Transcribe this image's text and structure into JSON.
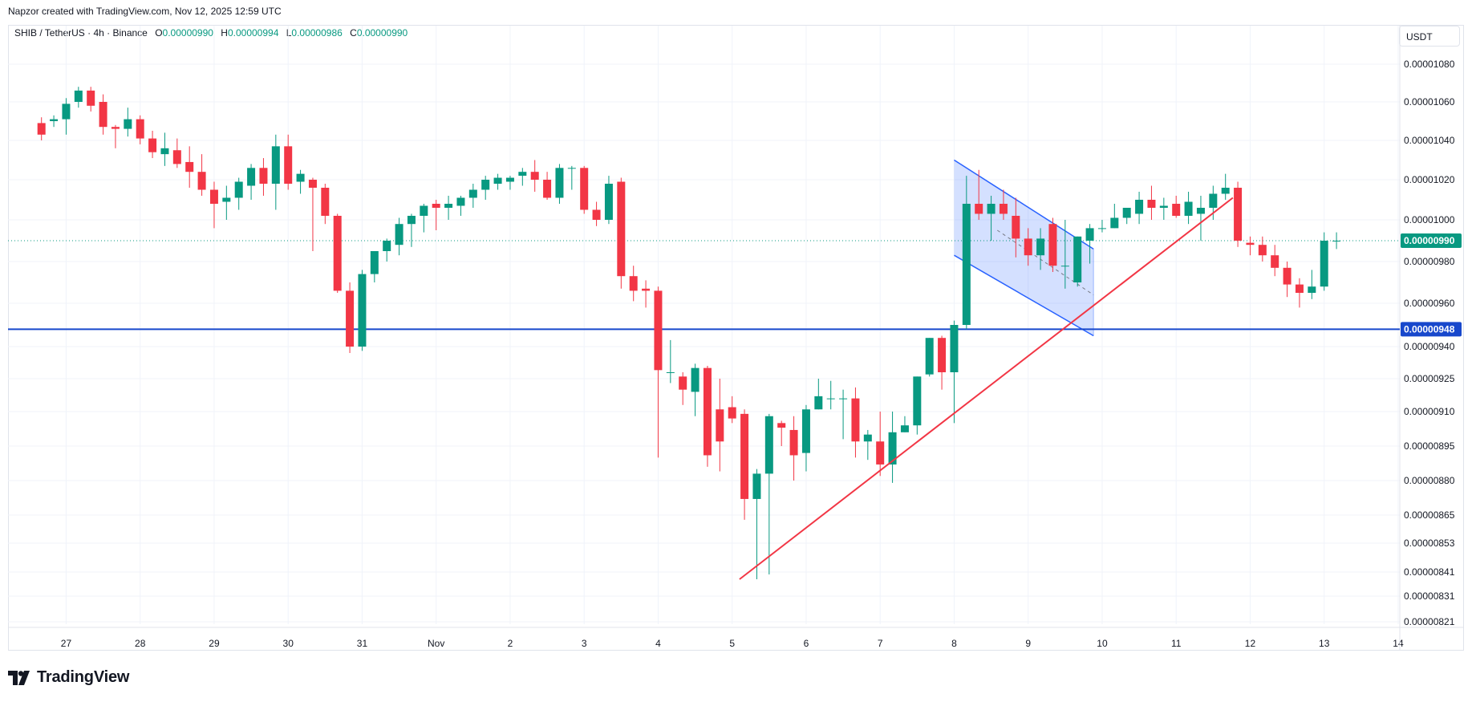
{
  "attribution": "Napzor created with TradingView.com, Nov 12, 2025 12:59 UTC",
  "legend": {
    "symbol": "SHIB / TetherUS · 4h · Binance",
    "open_label": "O",
    "open": "0.00000990",
    "high_label": "H",
    "high": "0.00000994",
    "low_label": "L",
    "low": "0.00000986",
    "close_label": "C",
    "close": "0.00000990"
  },
  "currency_button": "USDT",
  "logo_text": "TradingView",
  "colors": {
    "up": "#089981",
    "down": "#f23645",
    "level_line": "#1848cc",
    "trendline": "#f23645",
    "channel": "#2962ff",
    "grid": "#f0f3fa"
  },
  "chart_data": {
    "type": "candlestick",
    "title": "",
    "xlabel": "",
    "ylabel": "",
    "timeframe": "4h",
    "grid": true,
    "y_tick_labels": [
      "0.00001080",
      "0.00001060",
      "0.00001040",
      "0.00001020",
      "0.00001000",
      "0.00000980",
      "0.00000960",
      "0.00000940",
      "0.00000925",
      "0.00000910",
      "0.00000895",
      "0.00000880",
      "0.00000865",
      "0.00000853",
      "0.00000841",
      "0.00000831",
      "0.00000821"
    ],
    "x_tick_labels": [
      {
        "label": "27",
        "index": 2
      },
      {
        "label": "28",
        "index": 8
      },
      {
        "label": "29",
        "index": 14
      },
      {
        "label": "30",
        "index": 20
      },
      {
        "label": "31",
        "index": 26
      },
      {
        "label": "Nov",
        "index": 32
      },
      {
        "label": "2",
        "index": 38
      },
      {
        "label": "3",
        "index": 44
      },
      {
        "label": "4",
        "index": 50
      },
      {
        "label": "5",
        "index": 56
      },
      {
        "label": "6",
        "index": 62
      },
      {
        "label": "7",
        "index": 68
      },
      {
        "label": "8",
        "index": 74
      },
      {
        "label": "9",
        "index": 80
      },
      {
        "label": "10",
        "index": 86
      },
      {
        "label": "11",
        "index": 92
      },
      {
        "label": "12",
        "index": 98
      },
      {
        "label": "13",
        "index": 104
      },
      {
        "label": "14",
        "index": 110
      }
    ],
    "last_price": {
      "value": 9.9e-06,
      "label": "0.00000990"
    },
    "horizontal_level": {
      "value": 9.48e-06,
      "label": "0.00000948"
    },
    "candles": [
      [
        1.049e-05,
        1.052e-05,
        1.04e-05,
        1.043e-05
      ],
      [
        1.05e-05,
        1.053e-05,
        1.047e-05,
        1.051e-05
      ],
      [
        1.051e-05,
        1.062e-05,
        1.043e-05,
        1.059e-05
      ],
      [
        1.06e-05,
        1.068e-05,
        1.057e-05,
        1.066e-05
      ],
      [
        1.066e-05,
        1.068e-05,
        1.055e-05,
        1.058e-05
      ],
      [
        1.06e-05,
        1.064e-05,
        1.043e-05,
        1.047e-05
      ],
      [
        1.047e-05,
        1.048e-05,
        1.036e-05,
        1.046e-05
      ],
      [
        1.046e-05,
        1.057e-05,
        1.042e-05,
        1.051e-05
      ],
      [
        1.051e-05,
        1.053e-05,
        1.038e-05,
        1.041e-05
      ],
      [
        1.041e-05,
        1.045e-05,
        1.031e-05,
        1.034e-05
      ],
      [
        1.033e-05,
        1.044e-05,
        1.027e-05,
        1.036e-05
      ],
      [
        1.035e-05,
        1.041e-05,
        1.026e-05,
        1.028e-05
      ],
      [
        1.029e-05,
        1.037e-05,
        1.016e-05,
        1.024e-05
      ],
      [
        1.024e-05,
        1.033e-05,
        1.012e-05,
        1.015e-05
      ],
      [
        1.015e-05,
        1.019e-05,
        9.96e-06,
        1.008e-05
      ],
      [
        1.009e-05,
        1.017e-05,
        1e-05,
        1.011e-05
      ],
      [
        1.011e-05,
        1.021e-05,
        1.005e-05,
        1.019e-05
      ],
      [
        1.017e-05,
        1.028e-05,
        1.01e-05,
        1.026e-05
      ],
      [
        1.026e-05,
        1.031e-05,
        1.012e-05,
        1.018e-05
      ],
      [
        1.018e-05,
        1.043e-05,
        1.005e-05,
        1.037e-05
      ],
      [
        1.037e-05,
        1.043e-05,
        1.015e-05,
        1.018e-05
      ],
      [
        1.019e-05,
        1.025e-05,
        1.013e-05,
        1.023e-05
      ],
      [
        1.02e-05,
        1.021e-05,
        9.85e-06,
        1.016e-05
      ],
      [
        1.016e-05,
        1.018e-05,
        9.98e-06,
        1.002e-05
      ],
      [
        1.002e-05,
        1.003e-05,
        9.65e-06,
        9.66e-06
      ],
      [
        9.66e-06,
        9.7e-06,
        9.37e-06,
        9.4e-06
      ],
      [
        9.4e-06,
        9.76e-06,
        9.38e-06,
        9.74e-06
      ],
      [
        9.74e-06,
        9.84e-06,
        9.7e-06,
        9.85e-06
      ],
      [
        9.85e-06,
        9.91e-06,
        9.8e-06,
        9.9e-06
      ],
      [
        9.88e-06,
        1.001e-05,
        9.83e-06,
        9.98e-06
      ],
      [
        9.98e-06,
        1.003e-05,
        9.87e-06,
        1.002e-05
      ],
      [
        1.002e-05,
        1.008e-05,
        9.94e-06,
        1.007e-05
      ],
      [
        1.008e-05,
        1.01e-05,
        9.95e-06,
        1.006e-05
      ],
      [
        1.006e-05,
        1.012e-05,
        1e-05,
        1.008e-05
      ],
      [
        1.007e-05,
        1.012e-05,
        1.002e-05,
        1.011e-05
      ],
      [
        1.011e-05,
        1.018e-05,
        1.006e-05,
        1.015e-05
      ],
      [
        1.015e-05,
        1.022e-05,
        1.01e-05,
        1.02e-05
      ],
      [
        1.018e-05,
        1.023e-05,
        1.015e-05,
        1.021e-05
      ],
      [
        1.019e-05,
        1.022e-05,
        1.015e-05,
        1.021e-05
      ],
      [
        1.022e-05,
        1.026e-05,
        1.017e-05,
        1.024e-05
      ],
      [
        1.024e-05,
        1.03e-05,
        1.014e-05,
        1.02e-05
      ],
      [
        1.02e-05,
        1.024e-05,
        1.01e-05,
        1.011e-05
      ],
      [
        1.011e-05,
        1.028e-05,
        1.008e-05,
        1.026e-05
      ],
      [
        1.026e-05,
        1.027e-05,
        1.015e-05,
        1.026e-05
      ],
      [
        1.026e-05,
        1.027e-05,
        1.003e-05,
        1.005e-05
      ],
      [
        1.005e-05,
        1.009e-05,
        9.97e-06,
        1e-05
      ],
      [
        1e-05,
        1.022e-05,
        9.98e-06,
        1.018e-05
      ],
      [
        1.019e-05,
        1.021e-05,
        9.67e-06,
        9.73e-06
      ],
      [
        9.73e-06,
        9.78e-06,
        9.61e-06,
        9.66e-06
      ],
      [
        9.67e-06,
        9.71e-06,
        9.58e-06,
        9.66e-06
      ],
      [
        9.66e-06,
        9.68e-06,
        8.9e-06,
        9.29e-06
      ],
      [
        9.28e-06,
        9.43e-06,
        9.23e-06,
        9.28e-06
      ],
      [
        9.26e-06,
        9.28e-06,
        9.13e-06,
        9.2e-06
      ],
      [
        9.19e-06,
        9.32e-06,
        9.08e-06,
        9.3e-06
      ],
      [
        9.3e-06,
        9.31e-06,
        8.86e-06,
        8.91e-06
      ],
      [
        9.11e-06,
        9.25e-06,
        8.84e-06,
        8.97e-06
      ],
      [
        9.12e-06,
        9.17e-06,
        9.05e-06,
        9.07e-06
      ],
      [
        9.09e-06,
        9.11e-06,
        8.63e-06,
        8.72e-06
      ],
      [
        8.72e-06,
        8.85e-06,
        8.38e-06,
        8.83e-06
      ],
      [
        8.83e-06,
        9.09e-06,
        8.4e-06,
        9.08e-06
      ],
      [
        9.05e-06,
        9.06e-06,
        8.95e-06,
        9.03e-06
      ],
      [
        9.02e-06,
        9.08e-06,
        8.8e-06,
        8.91e-06
      ],
      [
        8.92e-06,
        9.13e-06,
        8.84e-06,
        9.11e-06
      ],
      [
        9.11e-06,
        9.25e-06,
        9.11e-06,
        9.17e-06
      ],
      [
        9.16e-06,
        9.24e-06,
        9.11e-06,
        9.16e-06
      ],
      [
        9.16e-06,
        9.2e-06,
        8.98e-06,
        9.16e-06
      ],
      [
        9.16e-06,
        9.21e-06,
        8.9e-06,
        8.97e-06
      ],
      [
        8.97e-06,
        9.02e-06,
        8.89e-06,
        9e-06
      ],
      [
        8.97e-06,
        9.1e-06,
        8.82e-06,
        8.87e-06
      ],
      [
        8.87e-06,
        9.1e-06,
        8.79e-06,
        9.01e-06
      ],
      [
        9.01e-06,
        9.08e-06,
        9.01e-06,
        9.04e-06
      ],
      [
        9.04e-06,
        9.26e-06,
        9e-06,
        9.26e-06
      ],
      [
        9.27e-06,
        9.44e-06,
        9.26e-06,
        9.44e-06
      ],
      [
        9.44e-06,
        9.45e-06,
        9.2e-06,
        9.28e-06
      ],
      [
        9.28e-06,
        9.52e-06,
        9.05e-06,
        9.5e-06
      ],
      [
        9.5e-06,
        1.022e-05,
        9.48e-06,
        1.008e-05
      ],
      [
        1.008e-05,
        1.025e-05,
        1e-05,
        1.003e-05
      ],
      [
        1.003e-05,
        1.012e-05,
        9.9e-06,
        1.008e-05
      ],
      [
        1.008e-05,
        1.015e-05,
        1e-05,
        1.003e-05
      ],
      [
        1.002e-05,
        1.011e-05,
        9.82e-06,
        9.91e-06
      ],
      [
        9.91e-06,
        9.96e-06,
        9.78e-06,
        9.83e-06
      ],
      [
        9.83e-06,
        9.96e-06,
        9.76e-06,
        9.91e-06
      ],
      [
        9.98e-06,
        1.001e-05,
        9.75e-06,
        9.78e-06
      ],
      [
        9.78e-06,
        1e-05,
        9.67e-06,
        9.78e-06
      ],
      [
        9.7e-06,
        9.92e-06,
        9.68e-06,
        9.92e-06
      ],
      [
        9.9e-06,
        9.98e-06,
        9.79e-06,
        9.96e-06
      ],
      [
        9.96e-06,
        1e-05,
        9.94e-06,
        9.96e-06
      ],
      [
        9.96e-06,
        1.008e-05,
        9.96e-06,
        1.001e-05
      ],
      [
        1.001e-05,
        1.006e-05,
        9.98e-06,
        1.006e-05
      ],
      [
        1.003e-05,
        1.014e-05,
        9.98e-06,
        1.01e-05
      ],
      [
        1.01e-05,
        1.017e-05,
        1e-05,
        1.006e-05
      ],
      [
        1.006e-05,
        1.011e-05,
        1e-05,
        1.007e-05
      ],
      [
        1.008e-05,
        1.012e-05,
        1.001e-05,
        1.002e-05
      ],
      [
        1.002e-05,
        1.014e-05,
        9.98e-06,
        1.009e-05
      ],
      [
        1.003e-05,
        1.012e-05,
        9.9e-06,
        1.006e-05
      ],
      [
        1.006e-05,
        1.017e-05,
        1e-05,
        1.013e-05
      ],
      [
        1.013e-05,
        1.023e-05,
        1.01e-05,
        1.016e-05
      ],
      [
        1.016e-05,
        1.019e-05,
        9.87e-06,
        9.9e-06
      ],
      [
        9.89e-06,
        9.92e-06,
        9.83e-06,
        9.88e-06
      ],
      [
        9.88e-06,
        9.92e-06,
        9.8e-06,
        9.83e-06
      ],
      [
        9.83e-06,
        9.88e-06,
        9.73e-06,
        9.77e-06
      ],
      [
        9.77e-06,
        9.8e-06,
        9.63e-06,
        9.69e-06
      ],
      [
        9.69e-06,
        9.72e-06,
        9.58e-06,
        9.65e-06
      ],
      [
        9.65e-06,
        9.76e-06,
        9.62e-06,
        9.68e-06
      ],
      [
        9.68e-06,
        9.94e-06,
        9.66e-06,
        9.9e-06
      ],
      [
        9.9e-06,
        9.94e-06,
        9.86e-06,
        9.9e-06
      ]
    ],
    "drawings": {
      "trendline": {
        "from": {
          "index": 56.6,
          "value": 8.38e-06
        },
        "to": {
          "index": 96.6,
          "value": 1.011e-05
        }
      },
      "channel": {
        "upper": {
          "from": {
            "index": 74.0,
            "value": 1.03e-05
          },
          "to": {
            "index": 85.3,
            "value": 9.86e-06
          }
        },
        "lower": {
          "from": {
            "index": 74.0,
            "value": 9.83e-06
          },
          "to": {
            "index": 85.3,
            "value": 9.45e-06
          }
        },
        "mid_dashed": {
          "from": {
            "index": 77.5,
            "value": 9.95e-06
          },
          "to": {
            "index": 85.3,
            "value": 9.64e-06
          }
        }
      }
    }
  }
}
